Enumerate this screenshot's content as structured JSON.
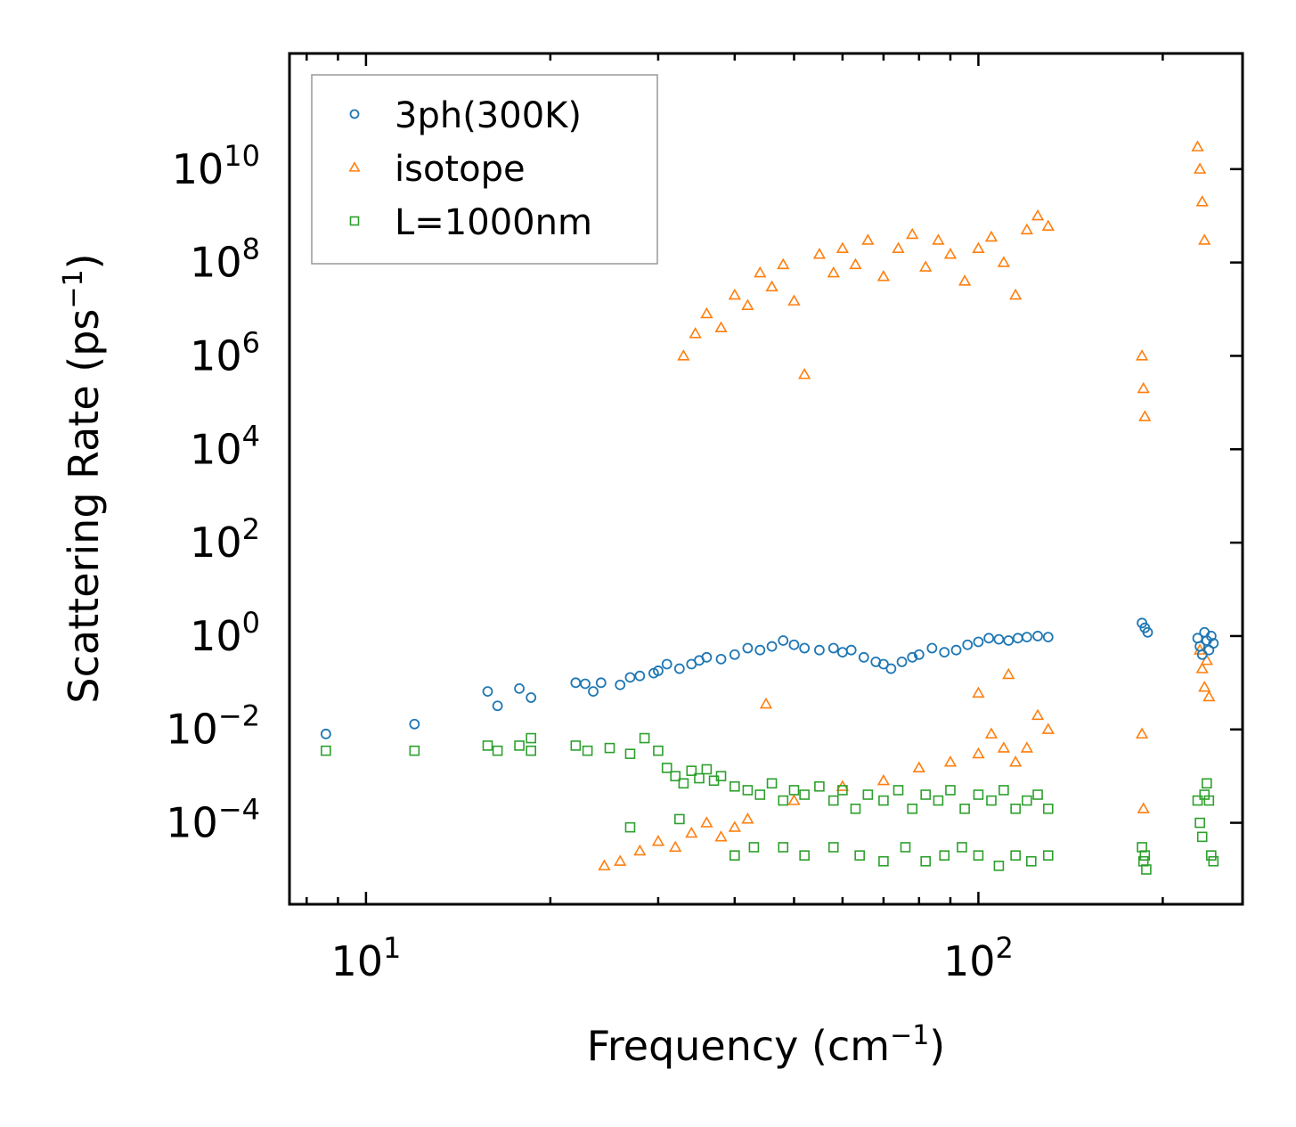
{
  "chart_data": {
    "type": "scatter",
    "x_scale": "log",
    "y_scale": "log",
    "xlim": [
      7.5,
      270
    ],
    "ylim": [
      1.8e-06,
      3000000000000
    ],
    "xlabel": "Frequency (cm",
    "xlabel_sup": "−1",
    "xlabel_end": ")",
    "ylabel": "Scattering Rate (ps",
    "ylabel_sup": "−1",
    "ylabel_end": ")",
    "x_ticks": [
      {
        "value": 10,
        "base": "10",
        "exp": "1"
      },
      {
        "value": 100,
        "base": "10",
        "exp": "2"
      }
    ],
    "y_ticks": [
      {
        "value": 0.0001,
        "base": "10",
        "exp": "−4"
      },
      {
        "value": 0.01,
        "base": "10",
        "exp": "−2"
      },
      {
        "value": 1,
        "base": "10",
        "exp": "0"
      },
      {
        "value": 100,
        "base": "10",
        "exp": "2"
      },
      {
        "value": 10000,
        "base": "10",
        "exp": "4"
      },
      {
        "value": 1000000,
        "base": "10",
        "exp": "6"
      },
      {
        "value": 100000000,
        "base": "10",
        "exp": "8"
      },
      {
        "value": 10000000000,
        "base": "10",
        "exp": "10"
      }
    ],
    "legend_position": "top-left",
    "series": [
      {
        "name": "3ph(300K)",
        "marker": "circle",
        "color": "#1f77b4",
        "points": [
          [
            8.6,
            0.008
          ],
          [
            12.0,
            0.013
          ],
          [
            15.8,
            0.065
          ],
          [
            16.4,
            0.032
          ],
          [
            17.8,
            0.075
          ],
          [
            18.6,
            0.048
          ],
          [
            22.0,
            0.1
          ],
          [
            22.8,
            0.095
          ],
          [
            23.5,
            0.065
          ],
          [
            24.2,
            0.1
          ],
          [
            26.0,
            0.09
          ],
          [
            27.0,
            0.13
          ],
          [
            28.0,
            0.14
          ],
          [
            29.5,
            0.16
          ],
          [
            30.0,
            0.18
          ],
          [
            31.0,
            0.25
          ],
          [
            32.5,
            0.2
          ],
          [
            34.0,
            0.25
          ],
          [
            35.0,
            0.3
          ],
          [
            36.0,
            0.35
          ],
          [
            38.0,
            0.32
          ],
          [
            40.0,
            0.4
          ],
          [
            42.0,
            0.55
          ],
          [
            44.0,
            0.5
          ],
          [
            46.0,
            0.6
          ],
          [
            48.0,
            0.8
          ],
          [
            50.0,
            0.65
          ],
          [
            52.0,
            0.55
          ],
          [
            55.0,
            0.5
          ],
          [
            58.0,
            0.55
          ],
          [
            60.0,
            0.45
          ],
          [
            62.0,
            0.5
          ],
          [
            65.0,
            0.35
          ],
          [
            68.0,
            0.28
          ],
          [
            70.0,
            0.25
          ],
          [
            72.0,
            0.2
          ],
          [
            75.0,
            0.28
          ],
          [
            78.0,
            0.35
          ],
          [
            80.0,
            0.4
          ],
          [
            84.0,
            0.55
          ],
          [
            88.0,
            0.45
          ],
          [
            92.0,
            0.5
          ],
          [
            96.0,
            0.65
          ],
          [
            100.0,
            0.75
          ],
          [
            104.0,
            0.9
          ],
          [
            108.0,
            0.85
          ],
          [
            112.0,
            0.8
          ],
          [
            116.0,
            0.9
          ],
          [
            120.0,
            0.95
          ],
          [
            125.0,
            1.0
          ],
          [
            130.0,
            0.95
          ],
          [
            185.0,
            1.9
          ],
          [
            187.0,
            1.5
          ],
          [
            189.0,
            1.2
          ],
          [
            228.0,
            0.9
          ],
          [
            230.0,
            0.6
          ],
          [
            232.0,
            0.4
          ],
          [
            234.0,
            1.2
          ],
          [
            236.0,
            0.8
          ],
          [
            238.0,
            0.5
          ],
          [
            240.0,
            1.0
          ],
          [
            242.0,
            0.7
          ]
        ]
      },
      {
        "name": "isotope",
        "marker": "triangle",
        "color": "#ff7f0e",
        "points": [
          [
            24.5,
            1.2e-05
          ],
          [
            26.0,
            1.5e-05
          ],
          [
            28.0,
            2.5e-05
          ],
          [
            30.0,
            4e-05
          ],
          [
            32.0,
            3e-05
          ],
          [
            34.0,
            6e-05
          ],
          [
            36.0,
            0.0001
          ],
          [
            38.0,
            5e-05
          ],
          [
            40.0,
            8e-05
          ],
          [
            42.0,
            0.00012
          ],
          [
            33.0,
            1000000
          ],
          [
            34.5,
            3000000
          ],
          [
            36.0,
            8000000
          ],
          [
            38.0,
            4000000
          ],
          [
            40.0,
            20000000
          ],
          [
            42.0,
            12000000
          ],
          [
            44.0,
            60000000
          ],
          [
            46.0,
            30000000
          ],
          [
            48.0,
            90000000
          ],
          [
            50.0,
            15000000
          ],
          [
            52.0,
            400000
          ],
          [
            55.0,
            150000000
          ],
          [
            58.0,
            60000000
          ],
          [
            60.0,
            200000000
          ],
          [
            63.0,
            90000000
          ],
          [
            66.0,
            300000000
          ],
          [
            70.0,
            50000000
          ],
          [
            74.0,
            200000000
          ],
          [
            78.0,
            400000000
          ],
          [
            82.0,
            80000000
          ],
          [
            86.0,
            300000000
          ],
          [
            90.0,
            150000000
          ],
          [
            95.0,
            40000000
          ],
          [
            100.0,
            200000000
          ],
          [
            105.0,
            350000000
          ],
          [
            110.0,
            100000000
          ],
          [
            115.0,
            20000000
          ],
          [
            120.0,
            500000000
          ],
          [
            125.0,
            1000000000
          ],
          [
            130.0,
            600000000
          ],
          [
            50.0,
            0.0003
          ],
          [
            60.0,
            0.0006
          ],
          [
            70.0,
            0.0008
          ],
          [
            80.0,
            0.0015
          ],
          [
            90.0,
            0.002
          ],
          [
            100.0,
            0.003
          ],
          [
            105.0,
            0.008
          ],
          [
            110.0,
            0.004
          ],
          [
            115.0,
            0.002
          ],
          [
            120.0,
            0.004
          ],
          [
            125.0,
            0.02
          ],
          [
            130.0,
            0.01
          ],
          [
            112.0,
            0.15
          ],
          [
            100.0,
            0.06
          ],
          [
            45.0,
            0.035
          ],
          [
            185.0,
            1000000
          ],
          [
            186.0,
            200000
          ],
          [
            187.0,
            50000
          ],
          [
            185.0,
            0.008
          ],
          [
            186.0,
            0.0002
          ],
          [
            228.0,
            30000000000
          ],
          [
            230.0,
            10000000000
          ],
          [
            232.0,
            2000000000
          ],
          [
            234.0,
            300000000
          ],
          [
            230.0,
            0.5
          ],
          [
            232.0,
            0.2
          ],
          [
            234.0,
            0.08
          ],
          [
            236.0,
            0.3
          ],
          [
            238.0,
            0.05
          ]
        ]
      },
      {
        "name": "L=1000nm",
        "marker": "square",
        "color": "#2ca02c",
        "points": [
          [
            8.6,
            0.0035
          ],
          [
            12.0,
            0.0035
          ],
          [
            15.8,
            0.0045
          ],
          [
            16.4,
            0.0035
          ],
          [
            17.8,
            0.0045
          ],
          [
            18.6,
            0.0035
          ],
          [
            18.6,
            0.0065
          ],
          [
            22.0,
            0.0045
          ],
          [
            23.0,
            0.0035
          ],
          [
            25.0,
            0.004
          ],
          [
            27.0,
            0.003
          ],
          [
            28.5,
            0.0065
          ],
          [
            30.0,
            0.0035
          ],
          [
            31.0,
            0.0015
          ],
          [
            32.0,
            0.001
          ],
          [
            33.0,
            0.0007
          ],
          [
            34.0,
            0.0013
          ],
          [
            35.0,
            0.0009
          ],
          [
            36.0,
            0.0014
          ],
          [
            37.0,
            0.0008
          ],
          [
            38.0,
            0.001
          ],
          [
            40.0,
            0.0006
          ],
          [
            42.0,
            0.0005
          ],
          [
            44.0,
            0.0004
          ],
          [
            46.0,
            0.0007
          ],
          [
            48.0,
            0.0003
          ],
          [
            50.0,
            0.0005
          ],
          [
            52.0,
            0.0004
          ],
          [
            55.0,
            0.0006
          ],
          [
            58.0,
            0.0003
          ],
          [
            60.0,
            0.0005
          ],
          [
            63.0,
            0.0002
          ],
          [
            66.0,
            0.0004
          ],
          [
            70.0,
            0.0003
          ],
          [
            74.0,
            0.0005
          ],
          [
            78.0,
            0.0002
          ],
          [
            82.0,
            0.0004
          ],
          [
            86.0,
            0.0003
          ],
          [
            90.0,
            0.0005
          ],
          [
            95.0,
            0.0002
          ],
          [
            100.0,
            0.0004
          ],
          [
            105.0,
            0.0003
          ],
          [
            110.0,
            0.0005
          ],
          [
            115.0,
            0.0002
          ],
          [
            120.0,
            0.0003
          ],
          [
            125.0,
            0.0004
          ],
          [
            130.0,
            0.0002
          ],
          [
            27.0,
            8e-05
          ],
          [
            32.5,
            0.00012
          ],
          [
            40.0,
            2e-05
          ],
          [
            43.0,
            3e-05
          ],
          [
            48.0,
            3e-05
          ],
          [
            52.0,
            2e-05
          ],
          [
            58.0,
            3e-05
          ],
          [
            64.0,
            2e-05
          ],
          [
            70.0,
            1.5e-05
          ],
          [
            76.0,
            3e-05
          ],
          [
            82.0,
            1.5e-05
          ],
          [
            88.0,
            2e-05
          ],
          [
            94.0,
            3e-05
          ],
          [
            100.0,
            2e-05
          ],
          [
            108.0,
            1.2e-05
          ],
          [
            115.0,
            2e-05
          ],
          [
            122.0,
            1.5e-05
          ],
          [
            130.0,
            2e-05
          ],
          [
            185.0,
            3e-05
          ],
          [
            186.0,
            1.5e-05
          ],
          [
            187.0,
            2e-05
          ],
          [
            188.0,
            1e-05
          ],
          [
            228.0,
            0.0003
          ],
          [
            230.0,
            0.0001
          ],
          [
            232.0,
            5e-05
          ],
          [
            234.0,
            0.0004
          ],
          [
            236.0,
            0.0007
          ],
          [
            238.0,
            0.0003
          ],
          [
            240.0,
            2e-05
          ],
          [
            242.0,
            1.5e-05
          ]
        ]
      }
    ]
  }
}
